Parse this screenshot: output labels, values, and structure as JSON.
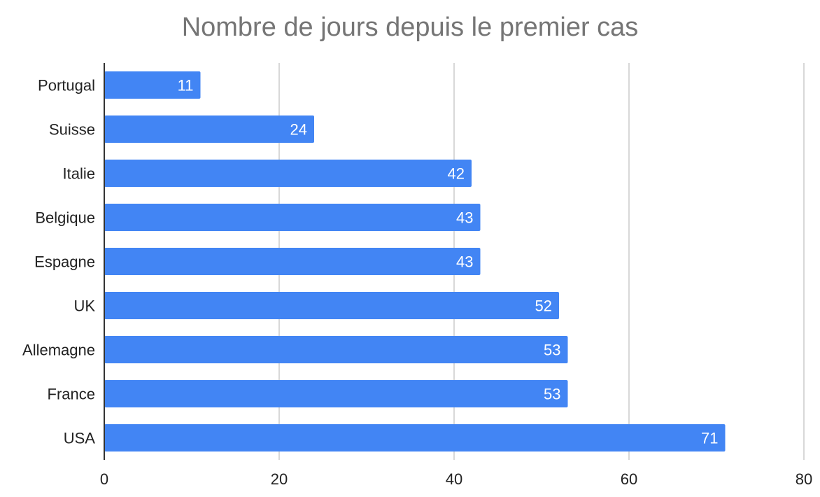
{
  "chart_data": {
    "type": "bar",
    "orientation": "horizontal",
    "title": "Nombre de jours depuis le premier cas",
    "categories": [
      "Portugal",
      "Suisse",
      "Italie",
      "Belgique",
      "Espagne",
      "UK",
      "Allemagne",
      "France",
      "USA"
    ],
    "values": [
      11,
      24,
      42,
      43,
      43,
      52,
      53,
      53,
      71
    ],
    "xlim": [
      0,
      80
    ],
    "xticks": [
      0,
      20,
      40,
      60,
      80
    ],
    "grid": true,
    "legend": "none",
    "colors": {
      "bar": "#4285f4",
      "grid": "#cccccc",
      "axis": "#333333",
      "title": "#757575",
      "label": "#222222",
      "data_label": "#ffffff"
    }
  }
}
